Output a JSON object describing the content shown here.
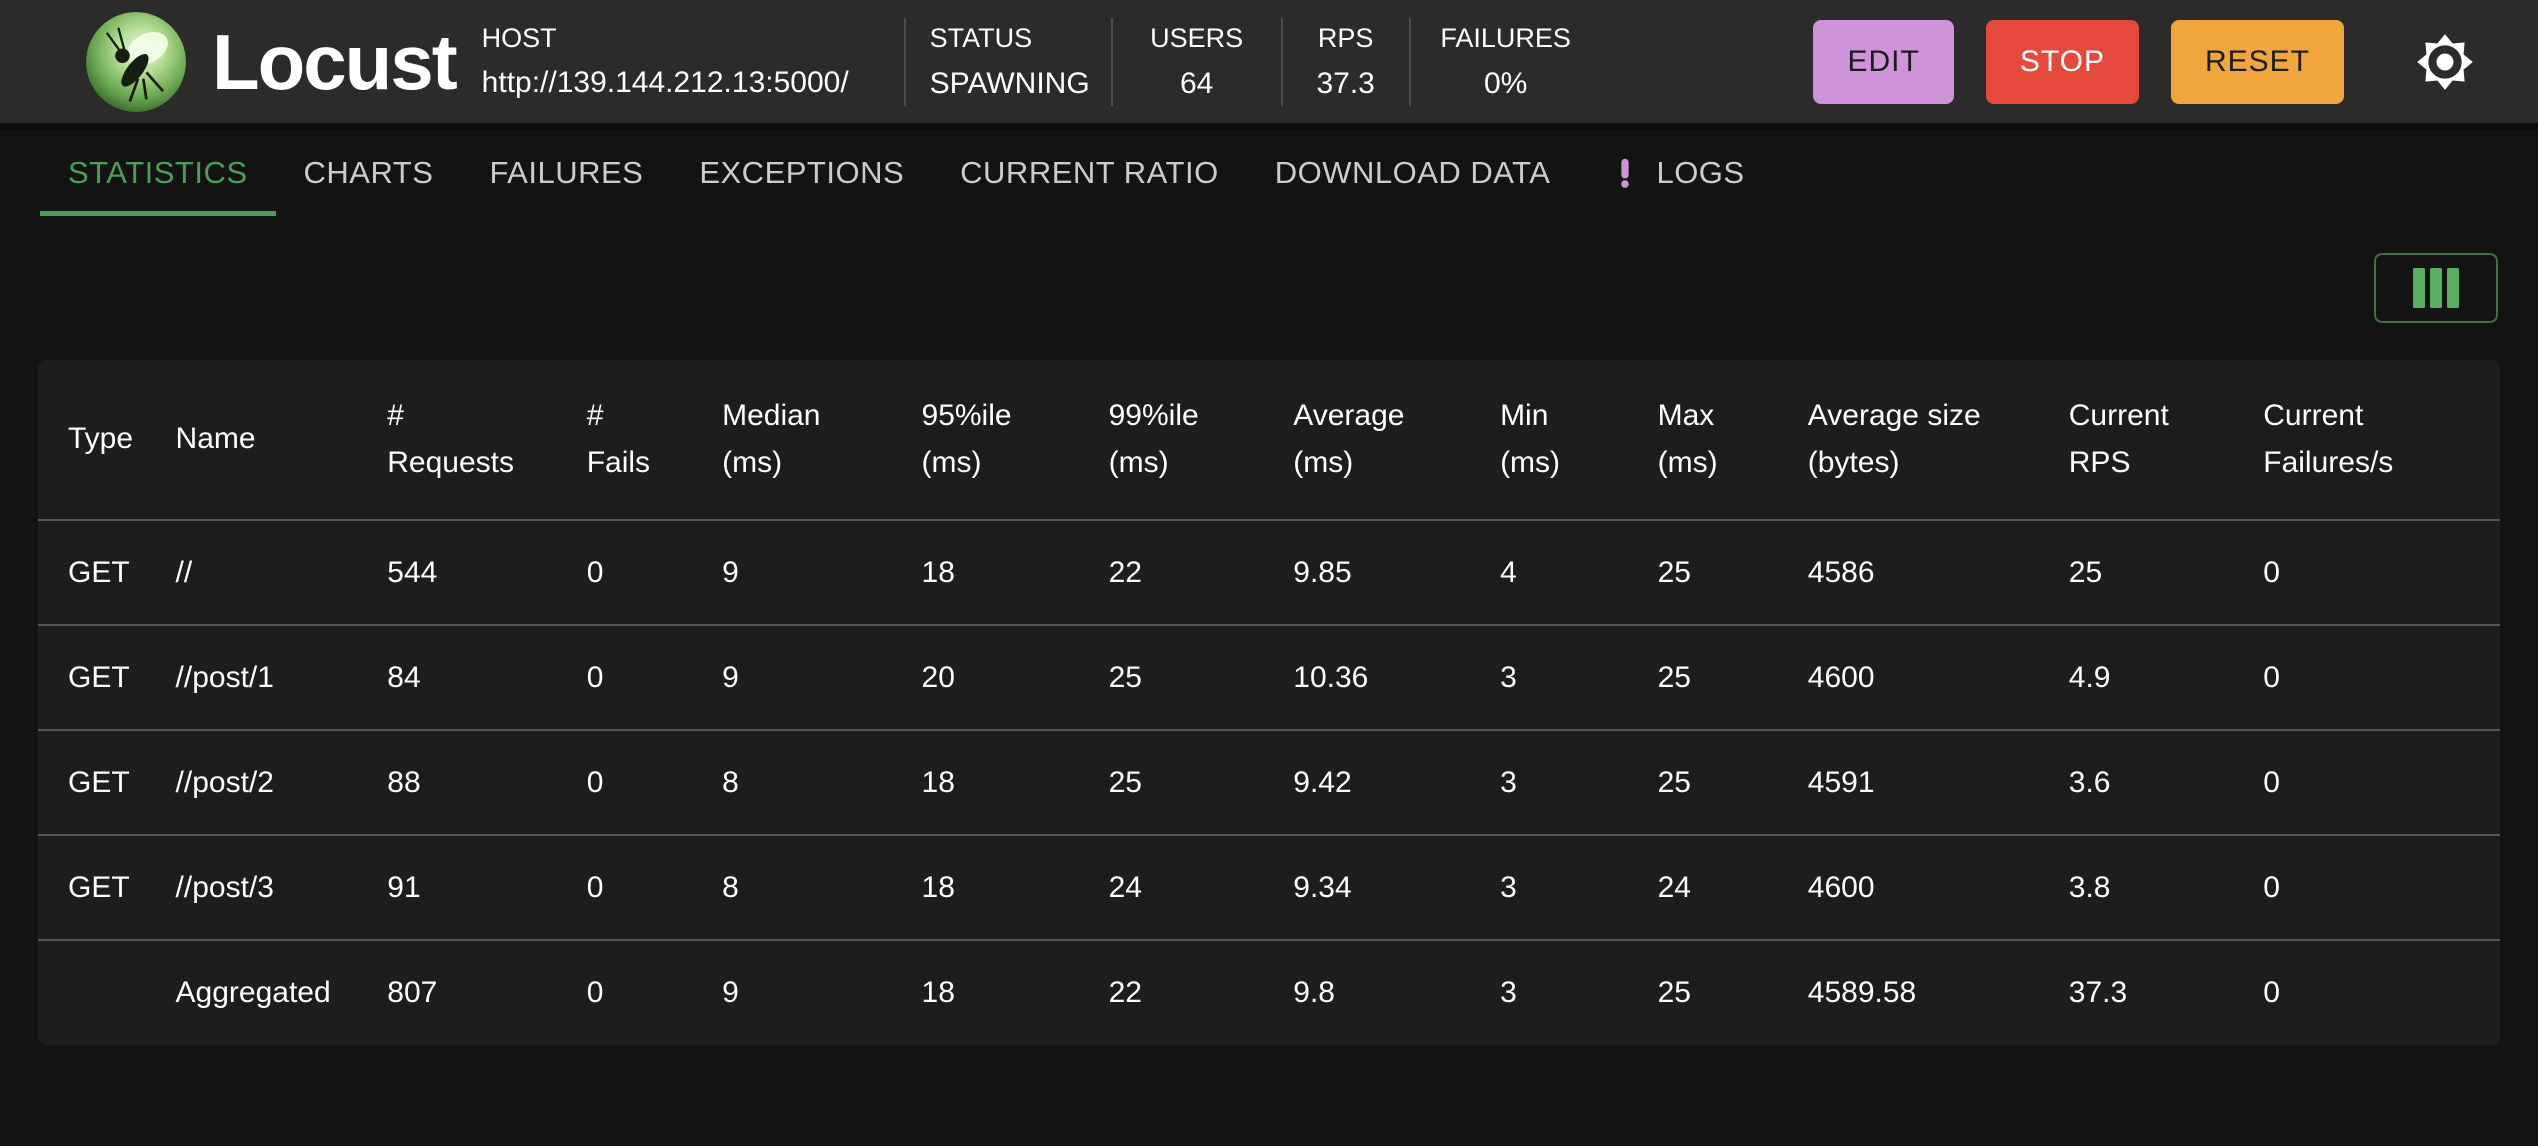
{
  "header": {
    "brand": "Locust",
    "host": {
      "label": "HOST",
      "value": "http://139.144.212.13:5000/"
    },
    "stats": [
      {
        "label": "STATUS",
        "value": "SPAWNING"
      },
      {
        "label": "USERS",
        "value": "64"
      },
      {
        "label": "RPS",
        "value": "37.3"
      },
      {
        "label": "FAILURES",
        "value": "0%"
      }
    ],
    "buttons": {
      "edit": "EDIT",
      "stop": "STOP",
      "reset": "RESET"
    }
  },
  "tabs": [
    {
      "label": "STATISTICS",
      "active": true
    },
    {
      "label": "CHARTS",
      "active": false
    },
    {
      "label": "FAILURES",
      "active": false
    },
    {
      "label": "EXCEPTIONS",
      "active": false
    },
    {
      "label": "CURRENT RATIO",
      "active": false
    },
    {
      "label": "DOWNLOAD DATA",
      "active": false
    },
    {
      "label": "LOGS",
      "active": false,
      "icon": "exclamation-alert"
    }
  ],
  "table": {
    "columns": [
      [
        "Type",
        ""
      ],
      [
        "Name",
        ""
      ],
      [
        "#",
        "Requests"
      ],
      [
        "#",
        "Fails"
      ],
      [
        "Median",
        "(ms)"
      ],
      [
        "95%ile",
        "(ms)"
      ],
      [
        "99%ile",
        "(ms)"
      ],
      [
        "Average",
        "(ms)"
      ],
      [
        "Min",
        "(ms)"
      ],
      [
        "Max",
        "(ms)"
      ],
      [
        "Average size",
        "(bytes)"
      ],
      [
        "Current",
        "RPS"
      ],
      [
        "Current",
        "Failures/s"
      ]
    ],
    "rows": [
      [
        "GET",
        "//",
        "544",
        "0",
        "9",
        "18",
        "22",
        "9.85",
        "4",
        "25",
        "4586",
        "25",
        "0"
      ],
      [
        "GET",
        "//post/1",
        "84",
        "0",
        "9",
        "20",
        "25",
        "10.36",
        "3",
        "25",
        "4600",
        "4.9",
        "0"
      ],
      [
        "GET",
        "//post/2",
        "88",
        "0",
        "8",
        "18",
        "25",
        "9.42",
        "3",
        "25",
        "4591",
        "3.6",
        "0"
      ],
      [
        "GET",
        "//post/3",
        "91",
        "0",
        "8",
        "18",
        "24",
        "9.34",
        "3",
        "24",
        "4600",
        "3.8",
        "0"
      ],
      [
        "",
        "Aggregated",
        "807",
        "0",
        "9",
        "18",
        "22",
        "9.8",
        "3",
        "25",
        "4589.58",
        "37.3",
        "0"
      ]
    ]
  },
  "colors": {
    "page-bg": "#131313",
    "header-bg": "#2b2b2b",
    "card-bg": "#1d1d1d",
    "divider": "#565656",
    "accent-green": "#4c9d57",
    "tab-inactive": "#cccccc",
    "edit-bg": "#ce93d8",
    "stop-bg": "#e5493c",
    "reset-bg": "#f0a63d",
    "logs-alert": "#ce93d8",
    "col-icon": "#5cad64",
    "col-border": "#41704a",
    "header-divider": "#4b4b4b"
  }
}
